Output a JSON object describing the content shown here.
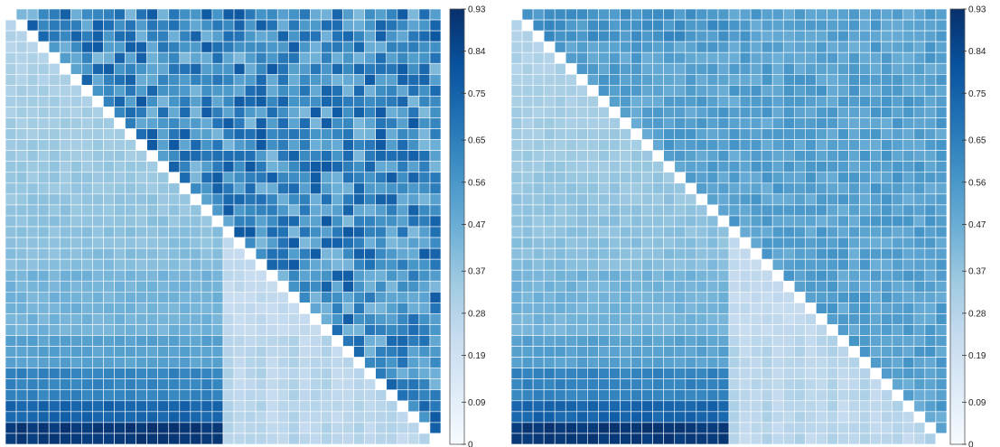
{
  "palette": [
    "#f7fbff",
    "#deebf7",
    "#c6dbef",
    "#9ecae1",
    "#6baed6",
    "#4292c6",
    "#2171b5",
    "#08519c",
    "#08306b"
  ],
  "chart_data": [
    {
      "type": "heatmap",
      "layout": "lower-triangle-smooth, upper-triangle-noisy",
      "grid_size": 40,
      "diagonal": "white",
      "lower_triangle_values": "0.2 – 0.93 (darkest in bottom-left rows)",
      "upper_triangle_values": "0.4 – 0.8 (scattered, noisy)",
      "colorbar": {
        "min": 0,
        "max": 0.93,
        "ticks": [
          "0",
          "0.09",
          "0.19",
          "0.28",
          "0.37",
          "0.47",
          "0.56",
          "0.65",
          "0.75",
          "0.84",
          "0.93"
        ]
      }
    },
    {
      "type": "heatmap",
      "layout": "lower-triangle-smooth, upper-triangle-uniform",
      "grid_size": 40,
      "diagonal": "white",
      "lower_triangle_values": "0.2 – 0.93 (darkest in bottom-left rows)",
      "upper_triangle_values": "0.45 – 0.6 (fairly uniform)",
      "colorbar": {
        "min": 0,
        "max": 0.93,
        "ticks": [
          "0",
          "0.09",
          "0.19",
          "0.28",
          "0.37",
          "0.47",
          "0.56",
          "0.65",
          "0.75",
          "0.84",
          "0.93"
        ]
      }
    }
  ]
}
